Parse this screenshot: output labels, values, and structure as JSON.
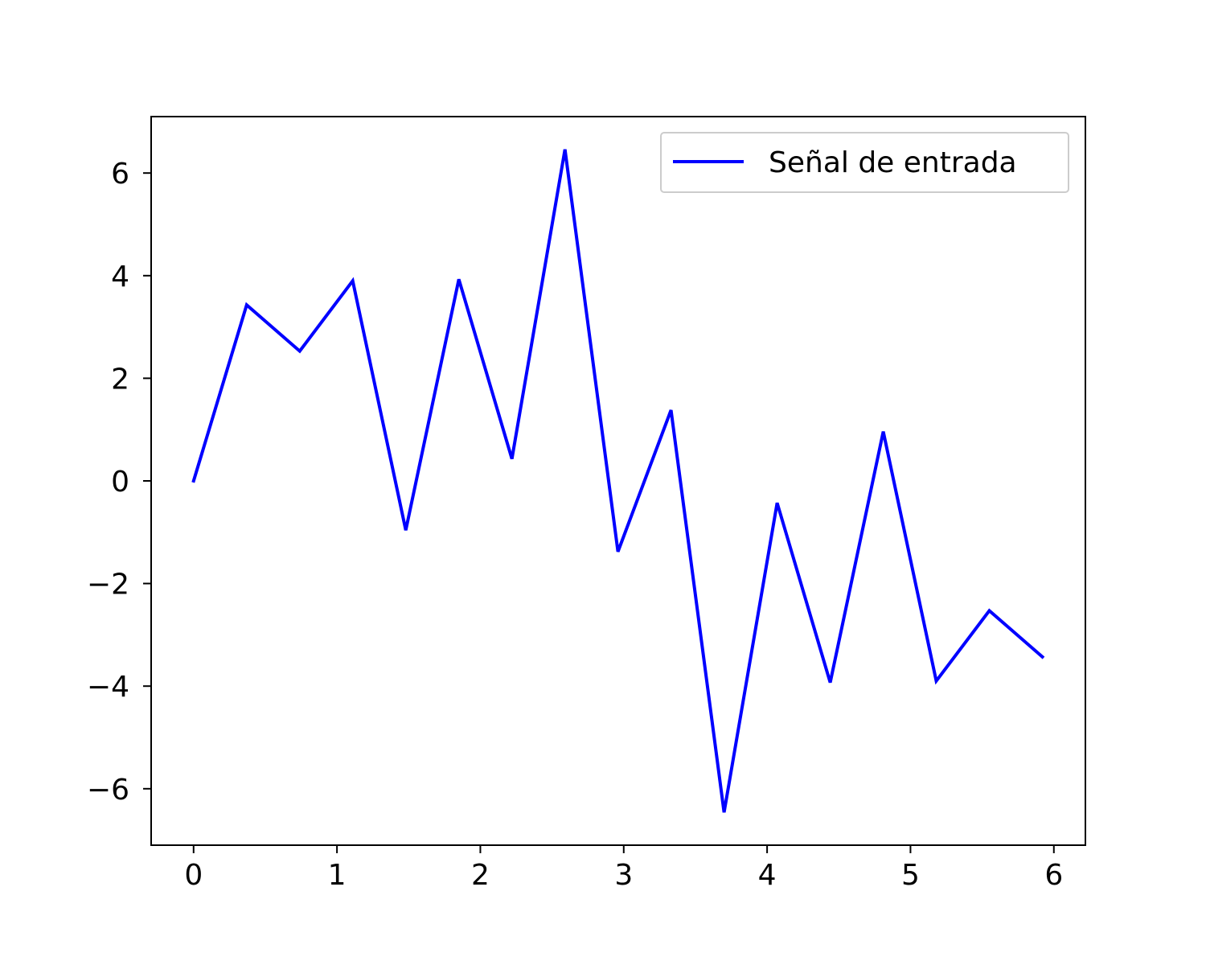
{
  "chart_data": {
    "type": "line",
    "title": "",
    "xlabel": "",
    "ylabel": "",
    "xlim": [
      -0.296,
      6.22
    ],
    "ylim": [
      -7.1,
      7.1
    ],
    "x_ticks": [
      0,
      1,
      2,
      3,
      4,
      5,
      6
    ],
    "y_ticks": [
      -6,
      -4,
      -2,
      0,
      2,
      4,
      6
    ],
    "x_tick_labels": [
      "0",
      "1",
      "2",
      "3",
      "4",
      "5",
      "6"
    ],
    "y_tick_labels": [
      "−6",
      "−4",
      "−2",
      "0",
      "2",
      "4",
      "6"
    ],
    "grid": false,
    "legend_position": "upper right",
    "series": [
      {
        "name": "Señal de entrada",
        "color": "#0000ff",
        "x": [
          0,
          0.37,
          0.74,
          1.11,
          1.48,
          1.85,
          2.22,
          2.59,
          2.96,
          3.33,
          3.7,
          4.07,
          4.44,
          4.81,
          5.18,
          5.55,
          5.92
        ],
        "y": [
          0,
          3.43,
          2.53,
          3.9,
          -0.96,
          3.93,
          0.43,
          6.46,
          -1.38,
          1.38,
          -6.46,
          -0.43,
          -3.93,
          0.96,
          -3.9,
          -2.53,
          -3.43
        ]
      }
    ]
  }
}
